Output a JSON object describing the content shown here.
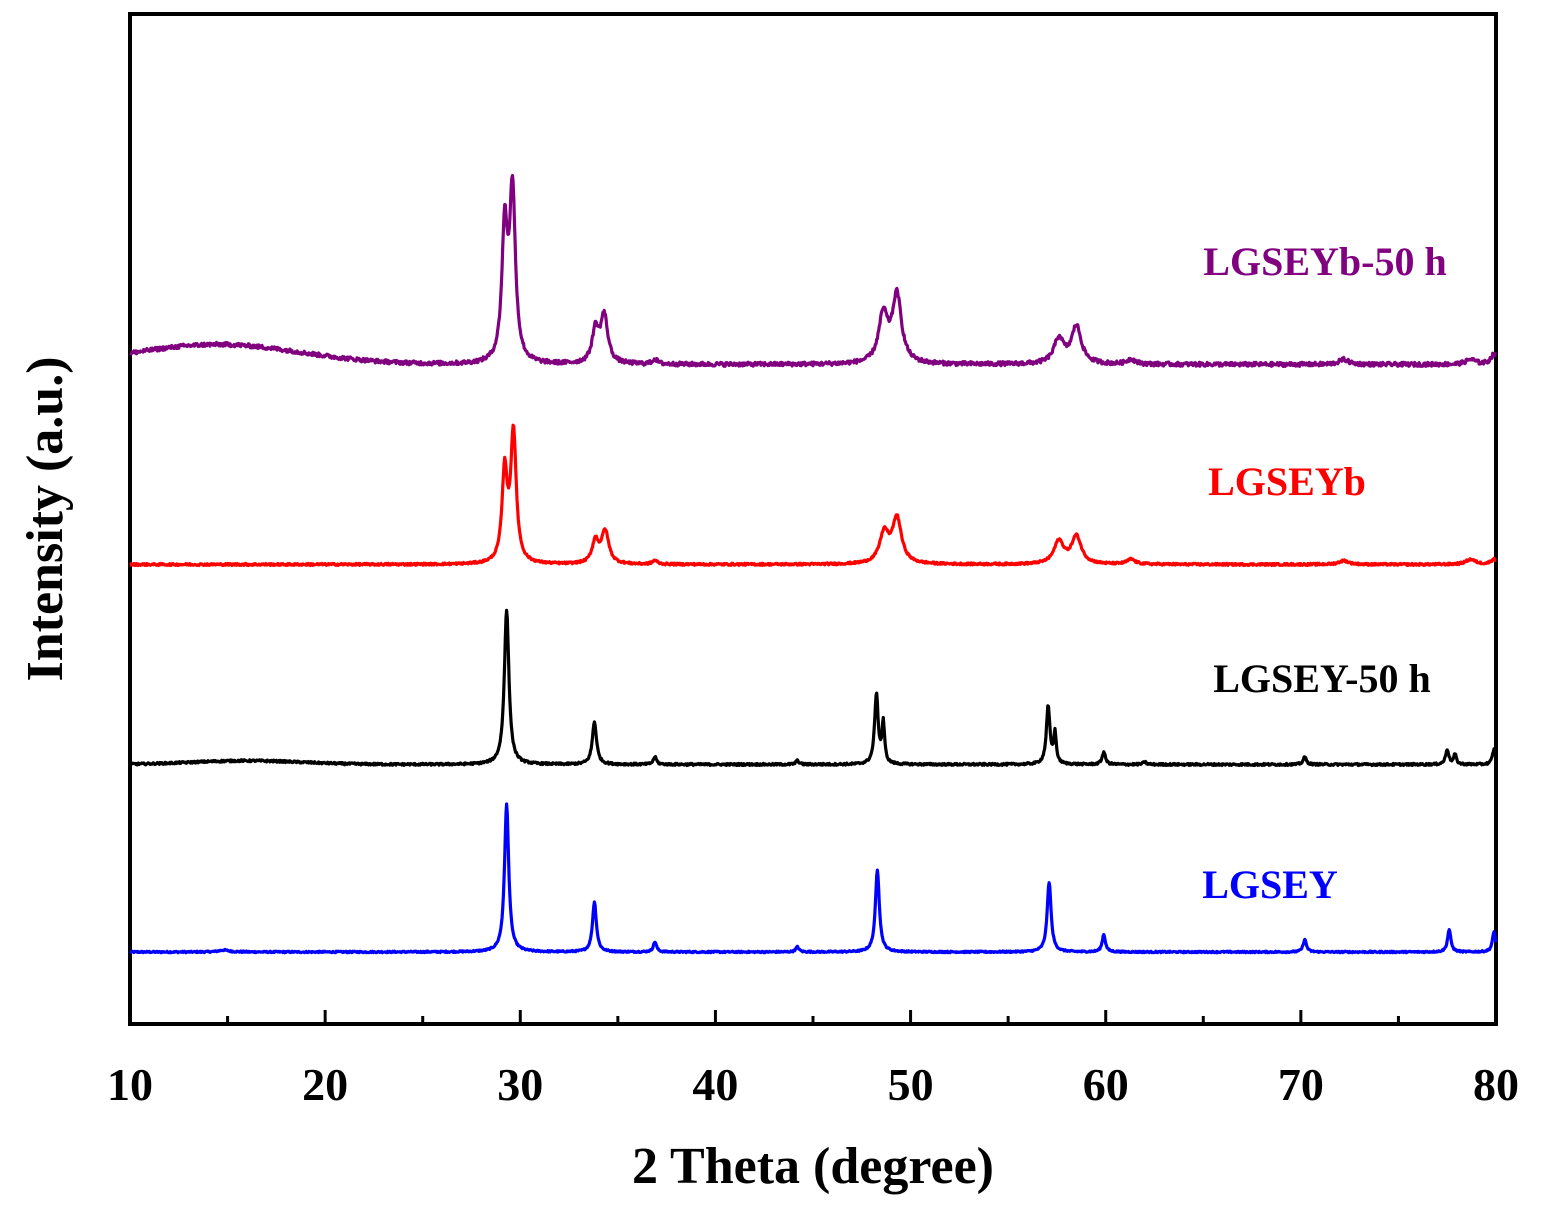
{
  "chart_data": {
    "type": "line",
    "title": "",
    "xlabel": "2 Theta (degree)",
    "ylabel": "Intensity (a.u.)",
    "xlim": [
      10,
      80
    ],
    "x_ticks": [
      "10",
      "20",
      "30",
      "40",
      "50",
      "60",
      "70",
      "80"
    ],
    "y_ticks_shown": false,
    "grid": false,
    "legend": "inline labels to the right of each curve",
    "offset_curves": true,
    "series": [
      {
        "name": "LGSEY",
        "color": "#0000ff",
        "baseline": 0.0,
        "noise": 0.003,
        "peaks": [
          {
            "x": 14.8,
            "h": 0.008,
            "w": 0.3
          },
          {
            "x": 29.3,
            "h": 0.59,
            "w": 0.13
          },
          {
            "x": 33.8,
            "h": 0.2,
            "w": 0.12
          },
          {
            "x": 36.9,
            "h": 0.04,
            "w": 0.1
          },
          {
            "x": 44.2,
            "h": 0.02,
            "w": 0.1
          },
          {
            "x": 48.3,
            "h": 0.33,
            "w": 0.12
          },
          {
            "x": 57.1,
            "h": 0.28,
            "w": 0.12
          },
          {
            "x": 59.9,
            "h": 0.07,
            "w": 0.1
          },
          {
            "x": 70.2,
            "h": 0.05,
            "w": 0.1
          },
          {
            "x": 77.6,
            "h": 0.09,
            "w": 0.1
          },
          {
            "x": 79.9,
            "h": 0.08,
            "w": 0.1
          }
        ]
      },
      {
        "name": "LGSEY-50 h",
        "color": "#000000",
        "baseline": 0.75,
        "noise": 0.004,
        "hump": {
          "x": 16,
          "h": 0.015,
          "w": 4
        },
        "peaks": [
          {
            "x": 29.3,
            "h": 0.62,
            "w": 0.14
          },
          {
            "x": 33.8,
            "h": 0.17,
            "w": 0.13
          },
          {
            "x": 36.9,
            "h": 0.03,
            "w": 0.1
          },
          {
            "x": 44.2,
            "h": 0.015,
            "w": 0.1
          },
          {
            "x": 48.25,
            "h": 0.28,
            "w": 0.11
          },
          {
            "x": 48.6,
            "h": 0.16,
            "w": 0.08
          },
          {
            "x": 57.05,
            "h": 0.23,
            "w": 0.11
          },
          {
            "x": 57.4,
            "h": 0.12,
            "w": 0.08
          },
          {
            "x": 59.9,
            "h": 0.05,
            "w": 0.1
          },
          {
            "x": 62.0,
            "h": 0.01,
            "w": 0.1
          },
          {
            "x": 70.2,
            "h": 0.03,
            "w": 0.1
          },
          {
            "x": 77.5,
            "h": 0.06,
            "w": 0.1
          },
          {
            "x": 77.9,
            "h": 0.04,
            "w": 0.08
          },
          {
            "x": 79.9,
            "h": 0.06,
            "w": 0.1
          }
        ]
      },
      {
        "name": "LGSEYb",
        "color": "#ff0000",
        "baseline": 1.55,
        "noise": 0.004,
        "peaks": [
          {
            "x": 29.2,
            "h": 0.36,
            "w": 0.16
          },
          {
            "x": 29.65,
            "h": 0.52,
            "w": 0.17
          },
          {
            "x": 33.85,
            "h": 0.09,
            "w": 0.2
          },
          {
            "x": 34.35,
            "h": 0.13,
            "w": 0.22
          },
          {
            "x": 36.9,
            "h": 0.015,
            "w": 0.15
          },
          {
            "x": 48.65,
            "h": 0.12,
            "w": 0.28
          },
          {
            "x": 49.3,
            "h": 0.18,
            "w": 0.28
          },
          {
            "x": 57.6,
            "h": 0.09,
            "w": 0.3
          },
          {
            "x": 58.5,
            "h": 0.11,
            "w": 0.3
          },
          {
            "x": 61.3,
            "h": 0.02,
            "w": 0.25
          },
          {
            "x": 72.2,
            "h": 0.015,
            "w": 0.3
          },
          {
            "x": 78.7,
            "h": 0.02,
            "w": 0.3
          },
          {
            "x": 79.9,
            "h": 0.02,
            "w": 0.2
          }
        ]
      },
      {
        "name": "LGSEYb-50 h",
        "color": "#800080",
        "baseline": 2.35,
        "noise": 0.008,
        "hump": {
          "x": 14.5,
          "h": 0.08,
          "w": 6
        },
        "peaks": [
          {
            "x": 29.2,
            "h": 0.52,
            "w": 0.17
          },
          {
            "x": 29.6,
            "h": 0.68,
            "w": 0.18
          },
          {
            "x": 33.85,
            "h": 0.13,
            "w": 0.2
          },
          {
            "x": 34.3,
            "h": 0.19,
            "w": 0.22
          },
          {
            "x": 36.9,
            "h": 0.02,
            "w": 0.15
          },
          {
            "x": 48.6,
            "h": 0.19,
            "w": 0.28
          },
          {
            "x": 49.3,
            "h": 0.27,
            "w": 0.28
          },
          {
            "x": 57.6,
            "h": 0.1,
            "w": 0.3
          },
          {
            "x": 58.5,
            "h": 0.15,
            "w": 0.3
          },
          {
            "x": 61.3,
            "h": 0.02,
            "w": 0.25
          },
          {
            "x": 72.2,
            "h": 0.02,
            "w": 0.3
          },
          {
            "x": 78.7,
            "h": 0.02,
            "w": 0.3
          },
          {
            "x": 79.9,
            "h": 0.04,
            "w": 0.2
          }
        ]
      }
    ]
  }
}
